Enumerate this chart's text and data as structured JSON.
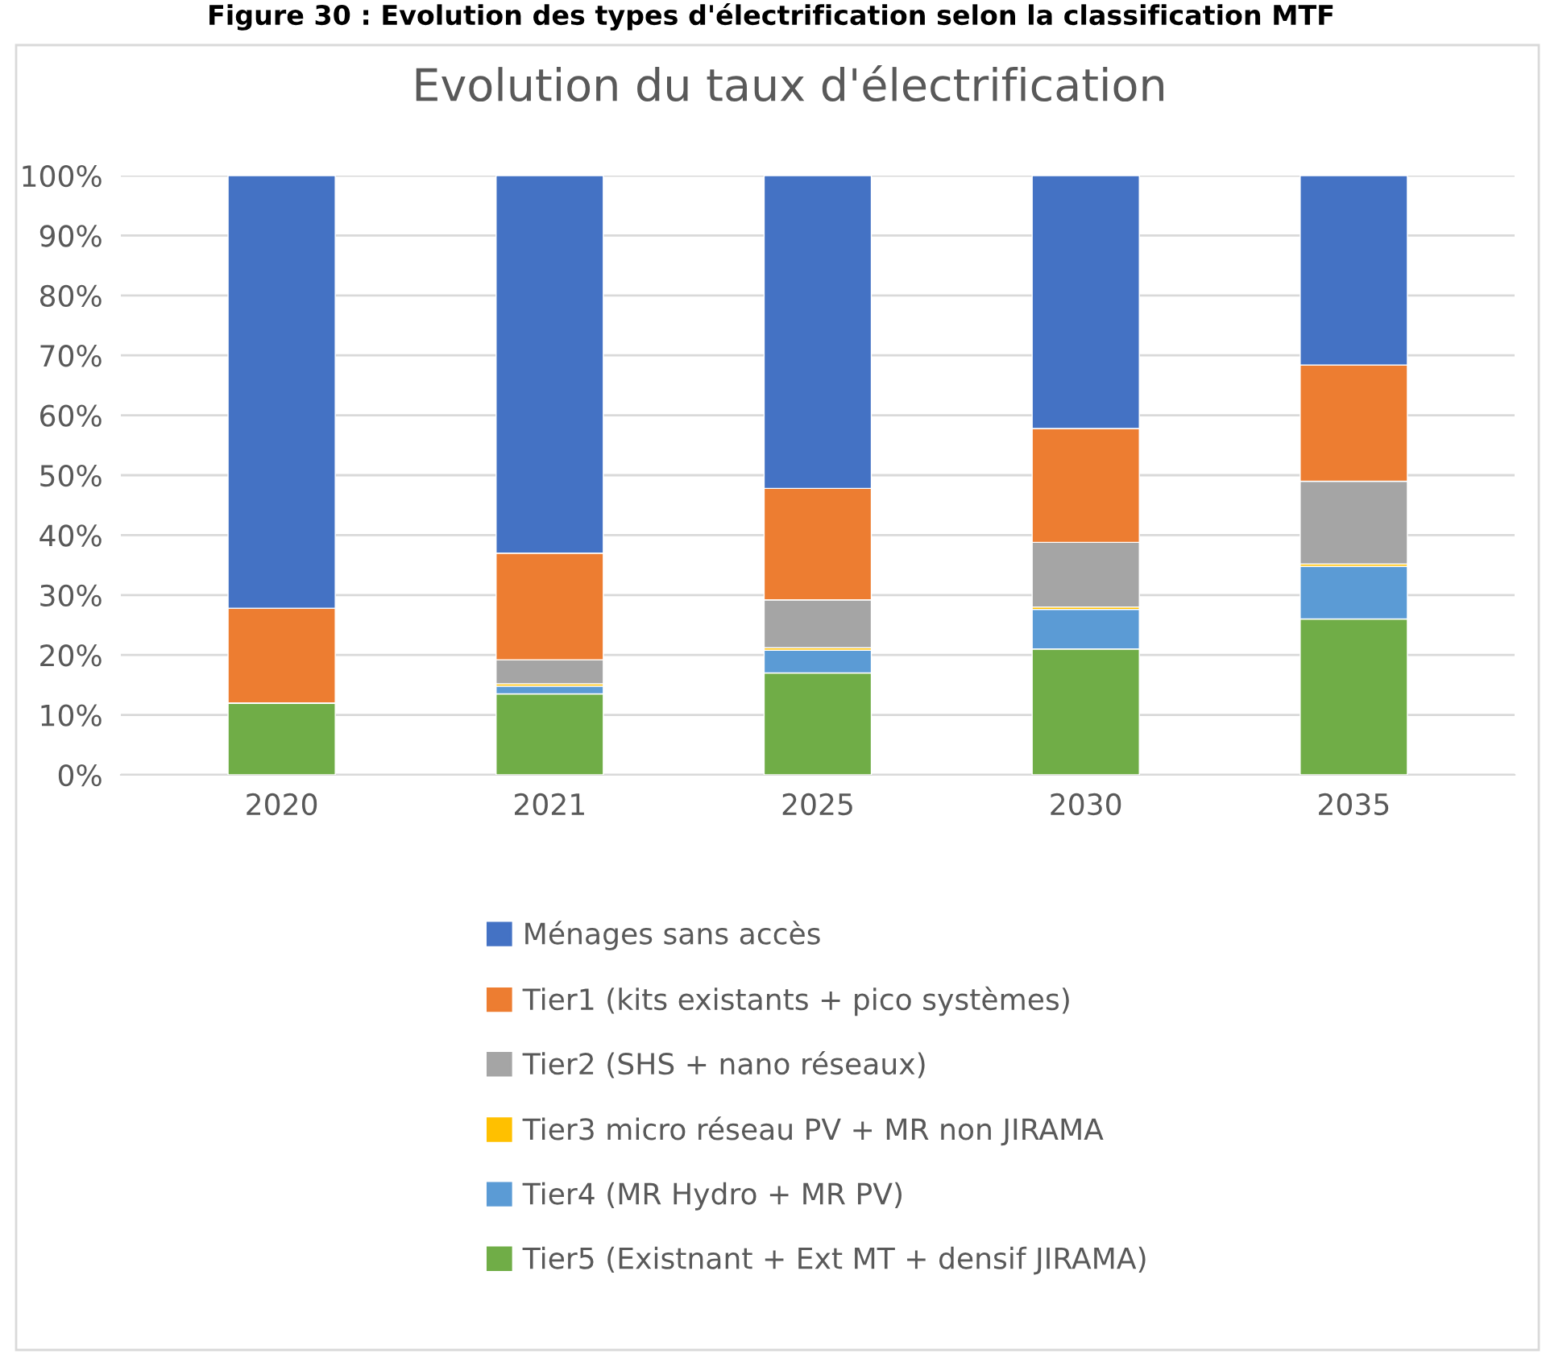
{
  "chart_data": {
    "type": "bar",
    "stacked": true,
    "annotations": [
      "Figure 30 : Evolution des types d'électrification selon la classification MTF"
    ],
    "title": "Evolution du taux d'électrification",
    "categories": [
      "2020",
      "2021",
      "2025",
      "2030",
      "2035"
    ],
    "series": [
      {
        "name": "Tier5 (Existnant + Ext MT + densif JIRAMA)",
        "color": "#70ad47",
        "values": [
          12,
          13.5,
          17,
          21,
          26
        ]
      },
      {
        "name": "Tier4 (MR Hydro + MR PV)",
        "color": "#5b9bd5",
        "values": [
          0,
          1.3,
          3.8,
          6.6,
          8.8
        ]
      },
      {
        "name": "Tier3 micro réseau PV + MR non JIRAMA",
        "color": "#ffc000",
        "values": [
          0,
          0.4,
          0.4,
          0.4,
          0.4
        ]
      },
      {
        "name": "Tier2 (SHS + nano réseaux)",
        "color": "#a5a5a5",
        "values": [
          0,
          4,
          8,
          10.8,
          13.8
        ]
      },
      {
        "name": "Tier1 (kits existants + pico systèmes)",
        "color": "#ed7d31",
        "values": [
          15.8,
          17.8,
          18.6,
          19,
          19.4
        ]
      },
      {
        "name": "Ménages sans accès",
        "color": "#4472c4",
        "values": [
          72.2,
          63,
          52.2,
          42.2,
          31.6
        ]
      }
    ],
    "ylim": [
      0,
      100
    ],
    "yticks": [
      {
        "value": 0,
        "label": "0%"
      },
      {
        "value": 10,
        "label": "10%"
      },
      {
        "value": 20,
        "label": "20%"
      },
      {
        "value": 30,
        "label": "30%"
      },
      {
        "value": 40,
        "label": "40%"
      },
      {
        "value": 50,
        "label": "50%"
      },
      {
        "value": 60,
        "label": "60%"
      },
      {
        "value": 70,
        "label": "70%"
      },
      {
        "value": 80,
        "label": "80%"
      },
      {
        "value": 90,
        "label": "90%"
      },
      {
        "value": 100,
        "label": "100%"
      }
    ],
    "grid": "y",
    "legend": "bottom"
  }
}
